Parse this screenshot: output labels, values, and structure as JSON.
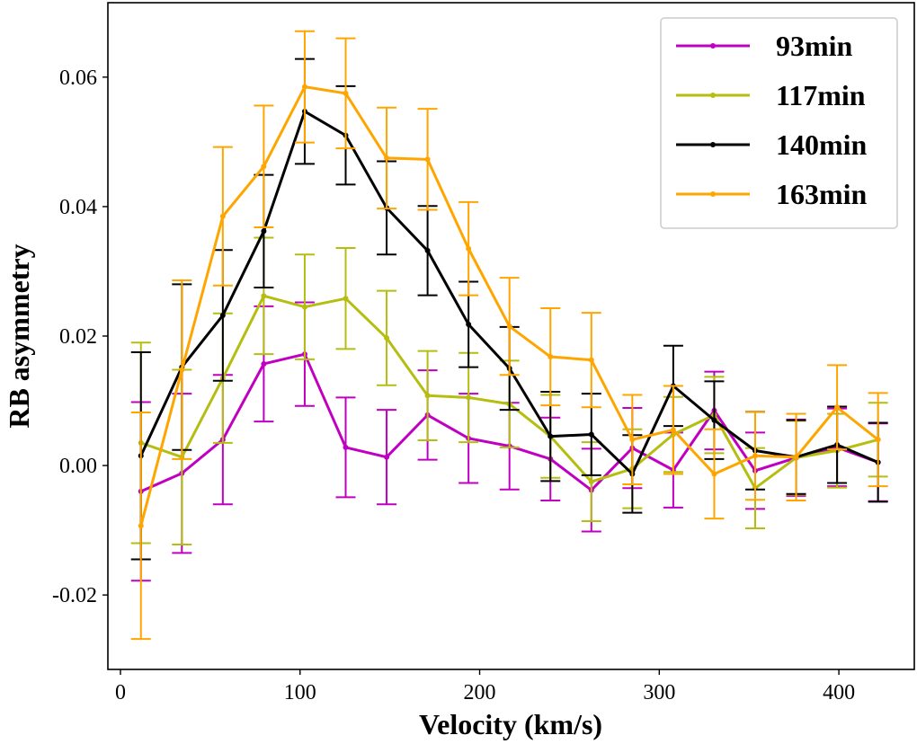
{
  "chart_data": {
    "type": "line",
    "title": "",
    "xlabel": "Velocity (km/s)",
    "ylabel": "RB asymmetry",
    "xlim": [
      -7,
      442
    ],
    "ylim": [
      -0.0315,
      0.0715
    ],
    "xticks": [
      0,
      100,
      200,
      300,
      400
    ],
    "xtick_labels": [
      "0",
      "100",
      "200",
      "300",
      "400"
    ],
    "yticks": [
      -0.02,
      0.0,
      0.02,
      0.04,
      0.06
    ],
    "ytick_labels": [
      "-0.02",
      "0.00",
      "0.02",
      "0.04",
      "0.06"
    ],
    "grid": false,
    "legend_position": "top-right",
    "x": [
      11.4,
      34.2,
      57.0,
      79.8,
      102.6,
      125.4,
      148.2,
      171.0,
      193.8,
      216.6,
      239.4,
      262.2,
      285.0,
      307.8,
      330.6,
      353.4,
      376.2,
      399.0,
      421.8
    ],
    "series": [
      {
        "name": "93min",
        "color": "#c000c0",
        "values": [
          -0.004,
          -0.0012,
          0.004,
          0.0157,
          0.0172,
          0.0028,
          0.0013,
          0.0078,
          0.0042,
          0.003,
          0.001,
          -0.0038,
          0.0027,
          -0.0007,
          0.0085,
          -0.0008,
          0.0012,
          0.0028,
          0.0005
        ],
        "errors": [
          0.0138,
          0.0123,
          0.01,
          0.0089,
          0.008,
          0.0077,
          0.0073,
          0.0069,
          0.0069,
          0.0067,
          0.0064,
          0.0064,
          0.0062,
          0.0058,
          0.006,
          0.0059,
          0.0059,
          0.006,
          0.006
        ]
      },
      {
        "name": "117min",
        "color": "#b5be10",
        "values": [
          0.0035,
          0.0013,
          0.0135,
          0.0262,
          0.0245,
          0.0258,
          0.0197,
          0.0108,
          0.0105,
          0.0095,
          0.0045,
          -0.0025,
          -0.0005,
          0.0048,
          0.0078,
          -0.0035,
          0.0012,
          0.0023,
          0.004
        ],
        "errors": [
          0.0155,
          0.0135,
          0.01,
          0.009,
          0.0081,
          0.0078,
          0.0073,
          0.0069,
          0.0069,
          0.0067,
          0.0064,
          0.0061,
          0.0061,
          0.0058,
          0.0059,
          0.0062,
          0.0057,
          0.0057,
          0.0057
        ]
      },
      {
        "name": "140min",
        "color": "#000000",
        "values": [
          0.0015,
          0.0152,
          0.0232,
          0.0362,
          0.0547,
          0.051,
          0.0398,
          0.0332,
          0.0218,
          0.015,
          0.0045,
          0.0048,
          -0.0013,
          0.0123,
          0.007,
          0.0023,
          0.0013,
          0.0032,
          0.0005
        ],
        "errors": [
          0.016,
          0.0128,
          0.0101,
          0.0087,
          0.0081,
          0.0076,
          0.0072,
          0.0069,
          0.0066,
          0.0064,
          0.0069,
          0.0063,
          0.006,
          0.0062,
          0.006,
          0.006,
          0.0057,
          0.0059,
          0.0061
        ]
      },
      {
        "name": "163min",
        "color": "#ffa500",
        "values": [
          -0.0093,
          0.0148,
          0.0385,
          0.0462,
          0.0585,
          0.0575,
          0.0475,
          0.0473,
          0.0335,
          0.0215,
          0.0168,
          0.0163,
          0.004,
          0.0055,
          -0.0013,
          0.0015,
          0.0013,
          0.009,
          0.004
        ],
        "errors": [
          0.0175,
          0.0138,
          0.0107,
          0.0094,
          0.0086,
          0.0085,
          0.0078,
          0.0078,
          0.0072,
          0.0075,
          0.0075,
          0.0073,
          0.0069,
          0.0068,
          0.0069,
          0.0068,
          0.0067,
          0.0065,
          0.0072
        ]
      }
    ]
  }
}
